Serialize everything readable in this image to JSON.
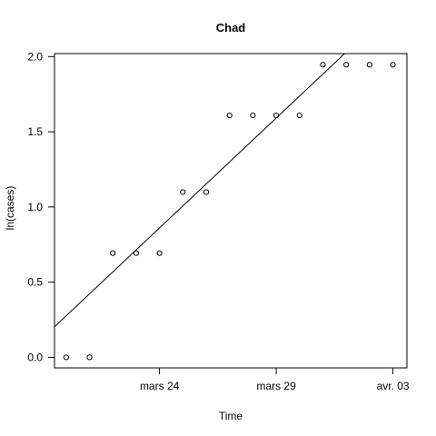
{
  "chart_data": {
    "type": "scatter",
    "title": "Chad",
    "xlabel": "Time",
    "ylabel": "ln(cases)",
    "x": [
      "2020-03-20",
      "2020-03-21",
      "2020-03-22",
      "2020-03-23",
      "2020-03-24",
      "2020-03-25",
      "2020-03-26",
      "2020-03-27",
      "2020-03-28",
      "2020-03-29",
      "2020-03-30",
      "2020-03-31",
      "2020-04-01",
      "2020-04-02",
      "2020-04-03"
    ],
    "y": [
      0,
      0,
      0.693,
      0.693,
      0.693,
      1.099,
      1.099,
      1.609,
      1.609,
      1.609,
      1.609,
      1.946,
      1.946,
      1.946,
      1.946
    ],
    "fit_line": {
      "x": [
        "2020-03-19",
        "2020-04-01"
      ],
      "y": [
        0.13,
        2.03
      ]
    },
    "xlim": [
      "2020-03-19.5",
      "2020-04-03.6"
    ],
    "ylim": [
      -0.07,
      2.02
    ],
    "x_ticks": [
      {
        "value": "2020-03-24",
        "label": "mars 24"
      },
      {
        "value": "2020-03-29",
        "label": "mars 29"
      },
      {
        "value": "2020-04-03",
        "label": "avr. 03"
      }
    ],
    "y_ticks": [
      {
        "value": 0.0,
        "label": "0.0"
      },
      {
        "value": 0.5,
        "label": "0.5"
      },
      {
        "value": 1.0,
        "label": "1.0"
      },
      {
        "value": 1.5,
        "label": "1.5"
      },
      {
        "value": 2.0,
        "label": "2.0"
      }
    ],
    "grid": false,
    "colors": {
      "points": "#000000",
      "line": "#000000",
      "axes": "#000000"
    }
  }
}
